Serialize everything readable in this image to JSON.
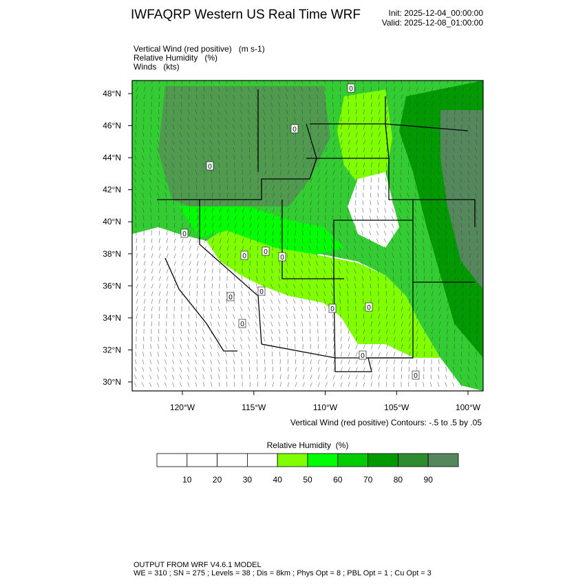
{
  "header": {
    "title": "IWFAQRP Western US Real Time WRF",
    "init": "Init: 2025-12-04_00:00:00",
    "valid": "Valid: 2025-12-08_01:00:00"
  },
  "fields": [
    "Vertical Wind (red positive)   (m s-1)",
    "Relative Humidity   (%)",
    "Winds   (kts)"
  ],
  "map": {
    "lat_labels": [
      "48°N",
      "46°N",
      "44°N",
      "42°N",
      "40°N",
      "38°N",
      "36°N",
      "34°N",
      "32°N",
      "30°N"
    ],
    "lon_labels": [
      "120°W",
      "115°W",
      "110°W",
      "105°W",
      "100°W"
    ],
    "contour_labels": [
      "0",
      "0",
      "0",
      "0",
      "0",
      "0",
      "0",
      "0",
      "0",
      "0",
      "0",
      "0",
      "0",
      "0"
    ],
    "contour_note": "Vertical Wind (red positive) Contours: -.5 to .5 by .05"
  },
  "colorbar": {
    "title": "Relative Humidity  (%)",
    "labels": [
      "10",
      "20",
      "30",
      "40",
      "50",
      "60",
      "70",
      "80",
      "90"
    ],
    "colors": [
      "#ffffff",
      "#ffffff",
      "#ffffff",
      "#ffffff",
      "#7fff00",
      "#00ff00",
      "#00cc00",
      "#009900",
      "#2e8b2e",
      "#55875c"
    ]
  },
  "footer": {
    "line1": "OUTPUT FROM WRF V4.6.1 MODEL",
    "line2": "WE = 310 ; SN = 275 ; Levels = 38 ; Dis = 8km ; Phys Opt = 8 ; PBL Opt = 1 ; Cu Opt = 3"
  }
}
